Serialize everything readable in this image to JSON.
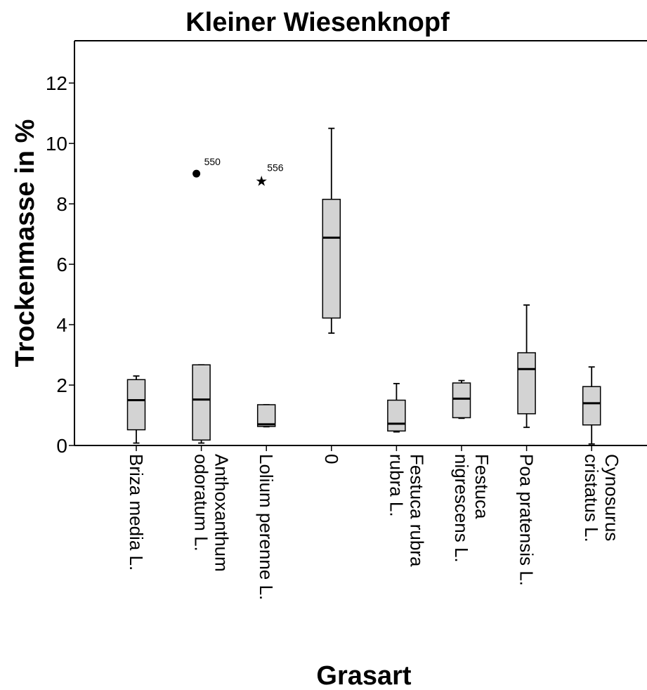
{
  "chart_data": {
    "type": "boxplot",
    "title": "Kleiner Wiesenknopf",
    "xlabel": "Grasart",
    "ylabel": "Trockenmasse in %",
    "ylim": [
      0,
      13.4
    ],
    "yticks": [
      0,
      2,
      4,
      6,
      8,
      10,
      12
    ],
    "grid": false,
    "legend": "none",
    "colors": {
      "box_fill": "#d3d3d3",
      "stroke": "#000000"
    },
    "categories": [
      [
        "Briza media L."
      ],
      [
        "Anthoxanthum",
        "odoratum L."
      ],
      [
        "Lolium perenne L."
      ],
      [
        "0"
      ],
      [
        "Festuca rubra",
        "rubra L."
      ],
      [
        "Festuca",
        "nigrescens L."
      ],
      [
        "Poa pratensis L."
      ],
      [
        "Cynosurus",
        "cristatus L."
      ]
    ],
    "boxes": [
      {
        "min": 0.08,
        "q1": 0.52,
        "median": 1.5,
        "q3": 2.18,
        "max": 2.3,
        "outliers": []
      },
      {
        "min": 0.08,
        "q1": 0.18,
        "median": 1.52,
        "q3": 2.67,
        "max": 2.67,
        "outliers": [
          {
            "value": 9.0,
            "label": "550",
            "marker": "circle"
          }
        ]
      },
      {
        "min": 0.62,
        "q1": 0.63,
        "median": 0.7,
        "q3": 1.35,
        "max": 1.35,
        "outliers": [
          {
            "value": 8.8,
            "label": "556",
            "marker": "star"
          }
        ]
      },
      {
        "min": 3.72,
        "q1": 4.22,
        "median": 6.88,
        "q3": 8.15,
        "max": 10.5,
        "outliers": []
      },
      {
        "min": 0.45,
        "q1": 0.48,
        "median": 0.72,
        "q3": 1.5,
        "max": 2.05,
        "outliers": []
      },
      {
        "min": 0.9,
        "q1": 0.92,
        "median": 1.55,
        "q3": 2.07,
        "max": 2.15,
        "outliers": []
      },
      {
        "min": 0.6,
        "q1": 1.05,
        "median": 2.53,
        "q3": 3.07,
        "max": 4.65,
        "outliers": []
      },
      {
        "min": 0.05,
        "q1": 0.68,
        "median": 1.4,
        "q3": 1.95,
        "max": 2.6,
        "outliers": []
      }
    ]
  }
}
